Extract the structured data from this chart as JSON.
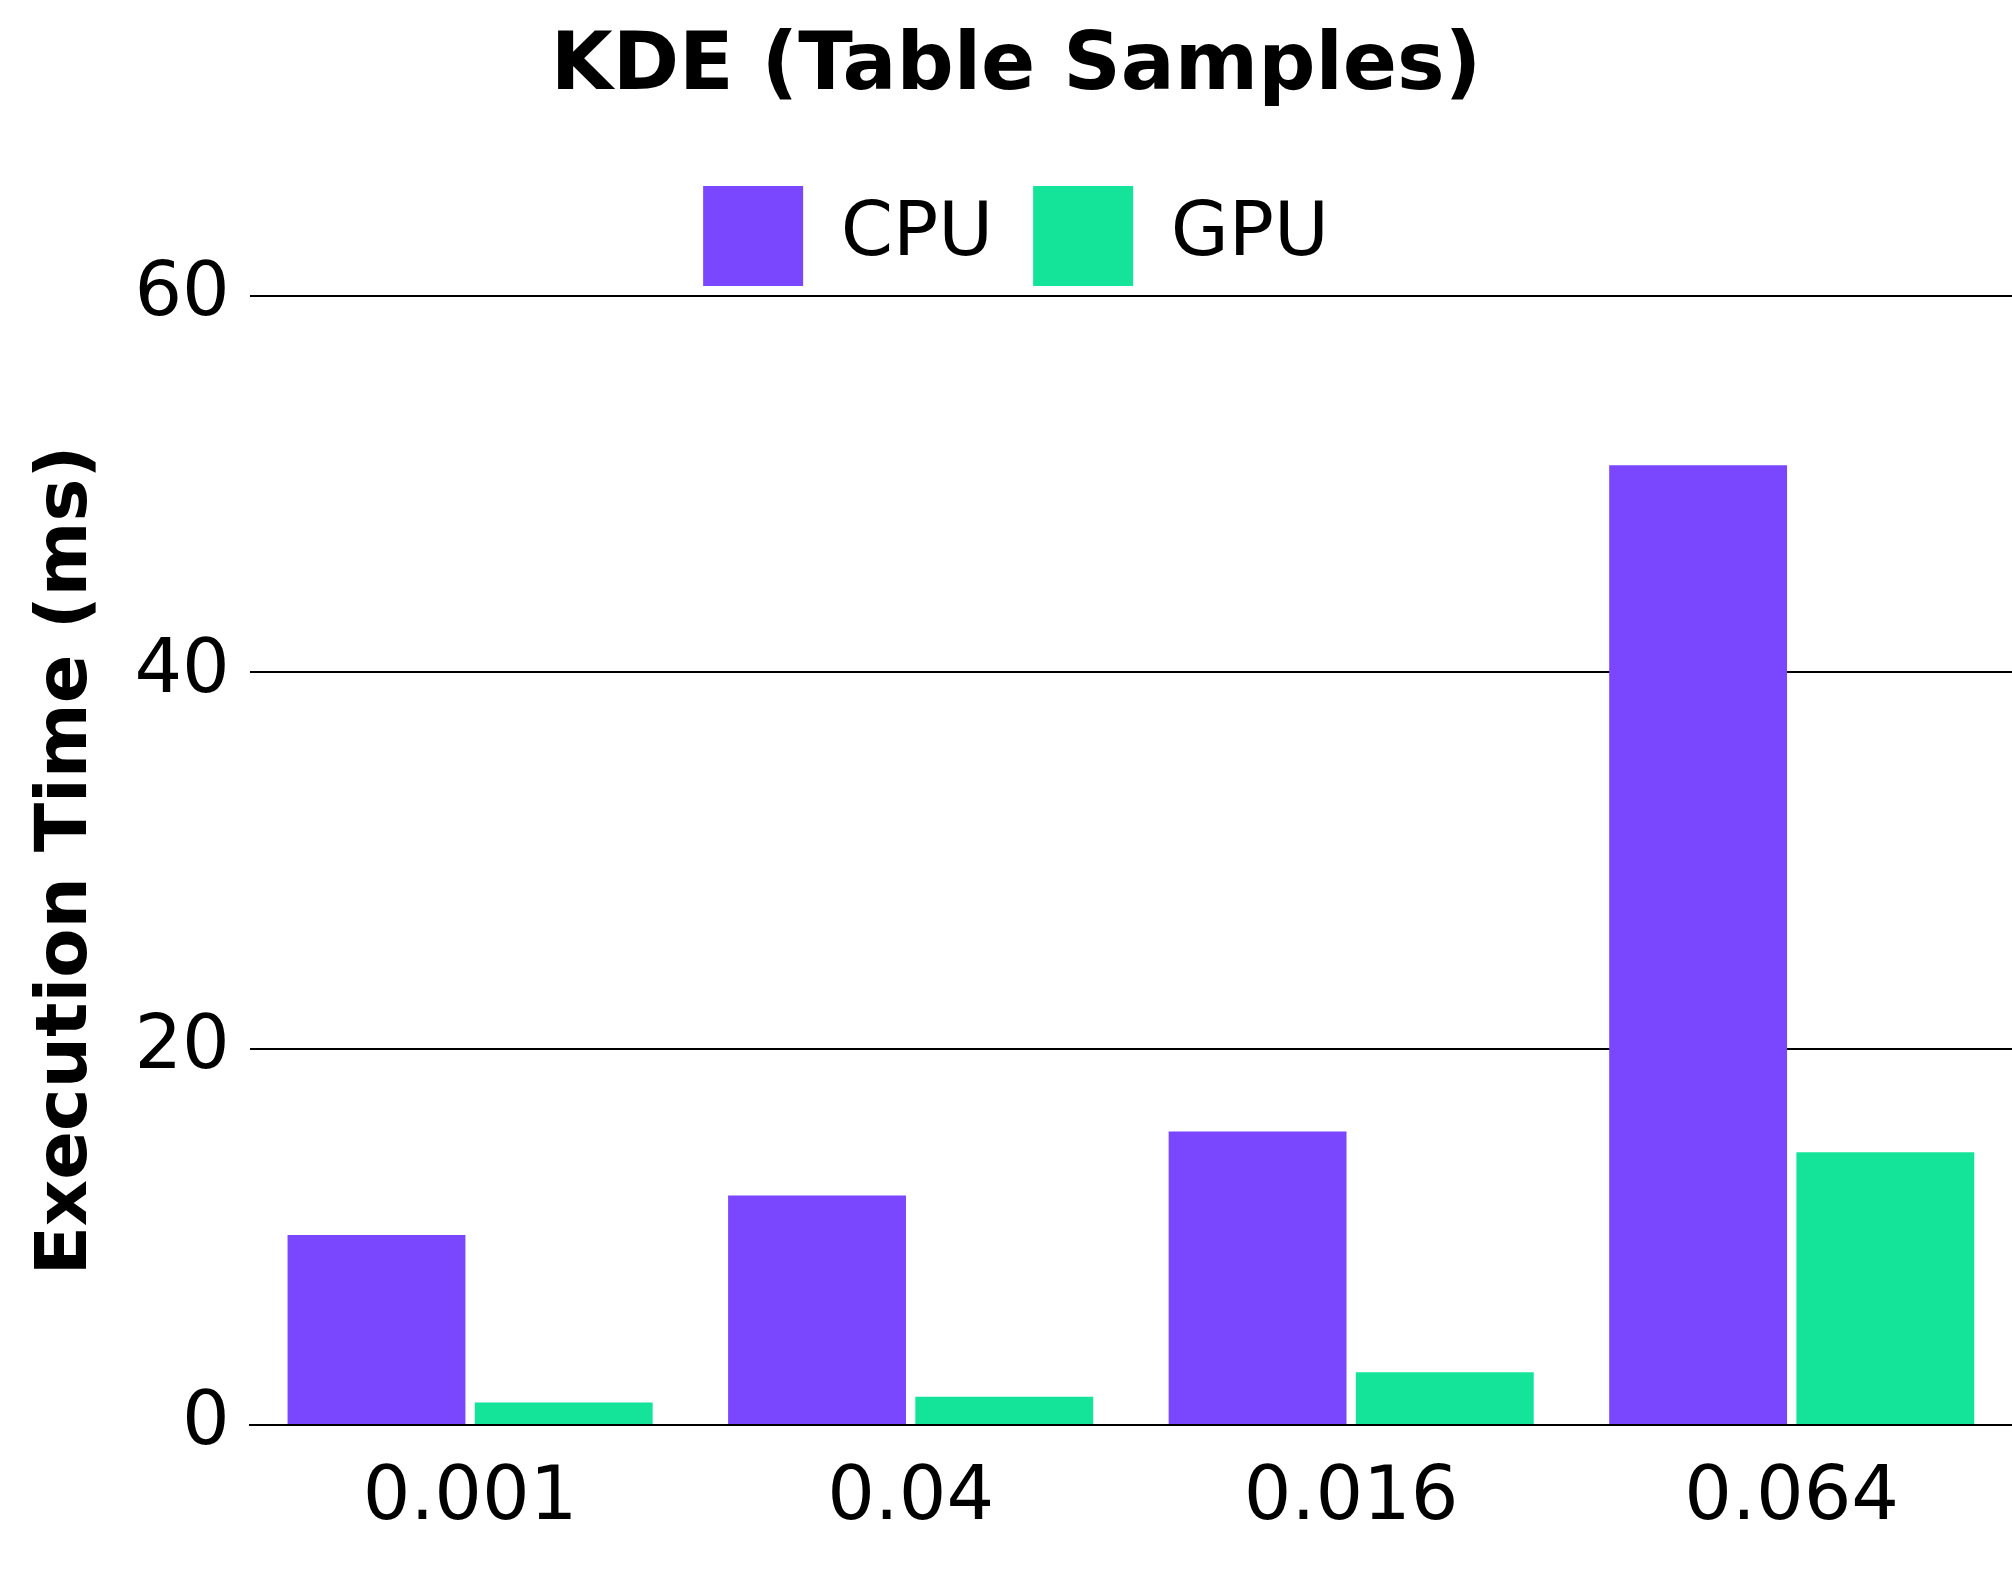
{
  "chart_data": {
    "type": "bar",
    "title": "KDE (Table Samples)",
    "ylabel": "Execution Time (ms)",
    "categories": [
      "0.001",
      "0.04",
      "0.016",
      "0.064"
    ],
    "series": [
      {
        "name": "CPU",
        "color": "#7a47ff",
        "values": [
          10.1,
          12.2,
          15.6,
          51.0
        ]
      },
      {
        "name": "GPU",
        "color": "#13e49a",
        "values": [
          1.2,
          1.5,
          2.8,
          14.5
        ]
      }
    ],
    "ylim": [
      0,
      60
    ],
    "yticks": [
      0,
      20,
      40,
      60
    ],
    "grid": "y",
    "legend": "top"
  }
}
